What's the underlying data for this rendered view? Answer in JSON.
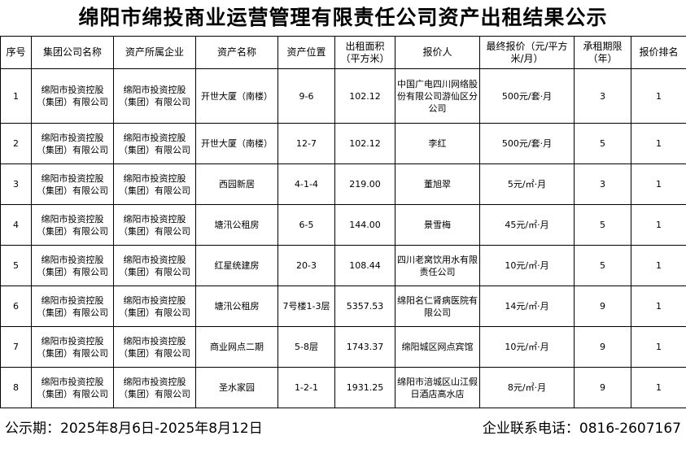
{
  "title": "绵阳市绵投商业运营管理有限责任公司资产出租结果公示",
  "headers": [
    "序号",
    "集团公司名称",
    "资产所属企业",
    "资产名称",
    "资产位置",
    "出租面积（平方米）",
    "报价人",
    "最终报价（元/平方米/月）",
    "承租期限（年）",
    "报价排名"
  ],
  "rows": [
    [
      "1",
      "绵阳市投资控股（集团）有限公司",
      "绵阳市投资控股（集团）有限公司",
      "开世大厦（南楼）",
      "9-6",
      "102.12",
      "中国广电四川网络股份有限公司游仙区分公司",
      "500元/套·月",
      "3",
      "1"
    ],
    [
      "2",
      "绵阳市投资控股（集团）有限公司",
      "绵阳市投资控股（集团）有限公司",
      "开世大厦（南楼）",
      "12-7",
      "102.12",
      "李红",
      "500元/套·月",
      "5",
      "1"
    ],
    [
      "3",
      "绵阳市投资控股（集团）有限公司",
      "绵阳市投资控股（集团）有限公司",
      "西园新居",
      "4-1-4",
      "219.00",
      "董旭翠",
      "5元/㎡·月",
      "3",
      "1"
    ],
    [
      "4",
      "绵阳市投资控股（集团）有限公司",
      "绵阳市投资控股（集团）有限公司",
      "塘汛公租房",
      "6-5",
      "144.00",
      "景雪梅",
      "45元/㎡·月",
      "5",
      "1"
    ],
    [
      "5",
      "绵阳市投资控股（集团）有限公司",
      "绵阳市投资控股（集团）有限公司",
      "红星统建房",
      "20-3",
      "108.44",
      "四川老窝饮用水有限责任公司",
      "10元/㎡·月",
      "5",
      "1"
    ],
    [
      "6",
      "绵阳市投资控股（集团）有限公司",
      "绵阳市投资控股（集团）有限公司",
      "塘汛公租房",
      "7号楼1-3层",
      "5357.53",
      "绵阳名仁肾病医院有限公司",
      "14元/㎡·月",
      "9",
      "1"
    ],
    [
      "7",
      "绵阳市投资控股（集团）有限公司",
      "绵阳市投资控股（集团）有限公司",
      "商业网点二期",
      "5-8层",
      "1743.37",
      "绵阳城区网点宾馆",
      "10元/㎡·月",
      "9",
      "1"
    ],
    [
      "8",
      "绵阳市投资控股（集团）有限公司",
      "绵阳市投资控股（集团）有限公司",
      "圣水家园",
      "1-2-1",
      "1931.25",
      "绵阳市涪城区山江假日酒店高水店",
      "8元/㎡·月",
      "9",
      "1"
    ]
  ],
  "footer": {
    "period": "公示期：2025年8月6日-2025年8月12日",
    "contact": "企业联系电话：0816-2607167"
  }
}
